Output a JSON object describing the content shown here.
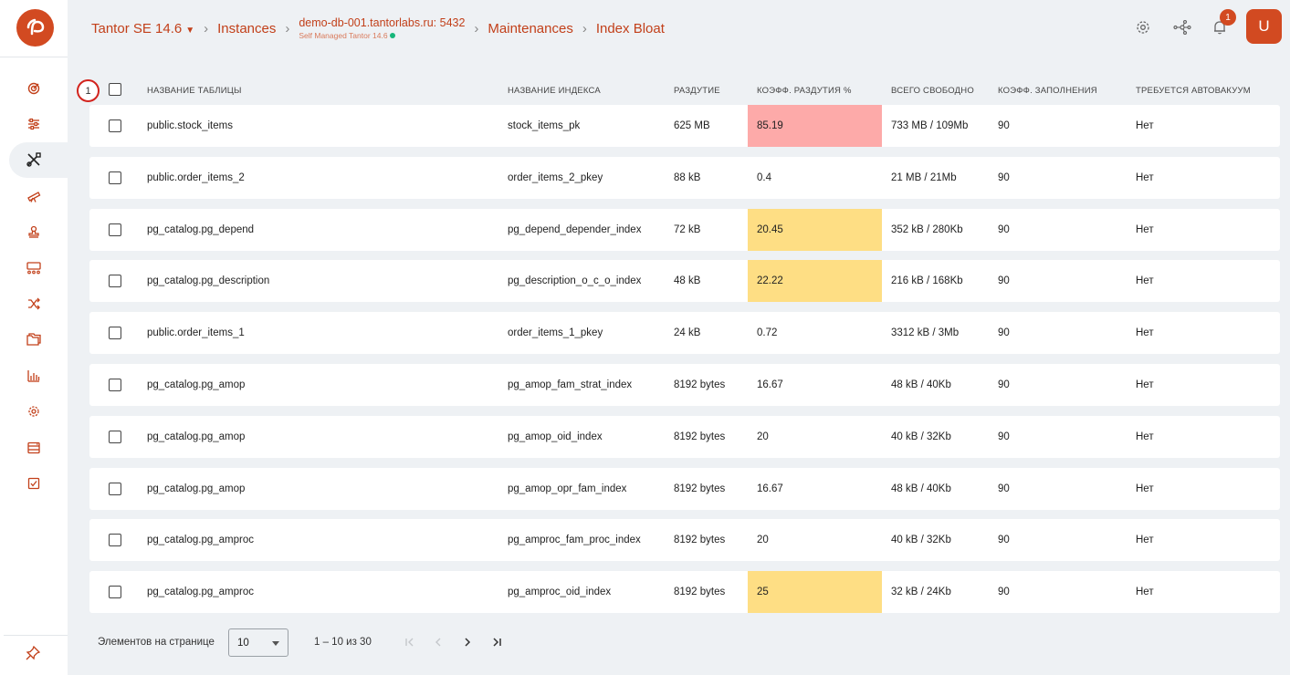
{
  "header": {
    "product": "Tantor SE 14.6",
    "instances": "Instances",
    "instance_host": "demo-db-001.tantorlabs.ru: 5432",
    "instance_sub": "Self Managed Tantor 14.6",
    "maintenances": "Maintenances",
    "current": "Index Bloat",
    "notifications_count": "1",
    "avatar_letter": "U"
  },
  "sidebar": {
    "items": [
      "dashboard-icon",
      "sliders-icon",
      "tools-icon",
      "telescope-icon",
      "stamp-icon",
      "cluster-icon",
      "shuffle-icon",
      "folders-icon",
      "bar-chart-icon",
      "settings-gear-icon",
      "database-icon",
      "checklist-icon"
    ],
    "active_index": 2
  },
  "annotation_marker": "1",
  "table": {
    "columns": [
      "НАЗВАНИЕ ТАБЛИЦЫ",
      "НАЗВАНИЕ ИНДЕКСА",
      "РАЗДУТИЕ",
      "КОЭФФ. РАЗДУТИЯ %",
      "ВСЕГО СВОБОДНО",
      "КОЭФФ. ЗАПОЛНЕНИЯ",
      "ТРЕБУЕТСЯ АВТОВАКУУМ"
    ],
    "rows": [
      {
        "table": "public.stock_items",
        "index": "stock_items_pk",
        "bloat": "625 MB",
        "coef": "85.19",
        "level": "red",
        "free": "733 MB / 109Mb",
        "fill": "90",
        "autovacuum": "Нет"
      },
      {
        "table": "public.order_items_2",
        "index": "order_items_2_pkey",
        "bloat": "88 kB",
        "coef": "0.4",
        "level": "none",
        "free": "21 MB / 21Mb",
        "fill": "90",
        "autovacuum": "Нет"
      },
      {
        "table": "pg_catalog.pg_depend",
        "index": "pg_depend_depender_index",
        "bloat": "72 kB",
        "coef": "20.45",
        "level": "yellow",
        "free": "352 kB / 280Kb",
        "fill": "90",
        "autovacuum": "Нет"
      },
      {
        "table": "pg_catalog.pg_description",
        "index": "pg_description_o_c_o_index",
        "bloat": "48 kB",
        "coef": "22.22",
        "level": "yellow",
        "free": "216 kB / 168Kb",
        "fill": "90",
        "autovacuum": "Нет"
      },
      {
        "table": "public.order_items_1",
        "index": "order_items_1_pkey",
        "bloat": "24 kB",
        "coef": "0.72",
        "level": "none",
        "free": "3312 kB / 3Mb",
        "fill": "90",
        "autovacuum": "Нет"
      },
      {
        "table": "pg_catalog.pg_amop",
        "index": "pg_amop_fam_strat_index",
        "bloat": "8192 bytes",
        "coef": "16.67",
        "level": "none",
        "free": "48 kB / 40Kb",
        "fill": "90",
        "autovacuum": "Нет"
      },
      {
        "table": "pg_catalog.pg_amop",
        "index": "pg_amop_oid_index",
        "bloat": "8192 bytes",
        "coef": "20",
        "level": "none",
        "free": "40 kB / 32Kb",
        "fill": "90",
        "autovacuum": "Нет"
      },
      {
        "table": "pg_catalog.pg_amop",
        "index": "pg_amop_opr_fam_index",
        "bloat": "8192 bytes",
        "coef": "16.67",
        "level": "none",
        "free": "48 kB / 40Kb",
        "fill": "90",
        "autovacuum": "Нет"
      },
      {
        "table": "pg_catalog.pg_amproc",
        "index": "pg_amproc_fam_proc_index",
        "bloat": "8192 bytes",
        "coef": "20",
        "level": "none",
        "free": "40 kB / 32Kb",
        "fill": "90",
        "autovacuum": "Нет"
      },
      {
        "table": "pg_catalog.pg_amproc",
        "index": "pg_amproc_oid_index",
        "bloat": "8192 bytes",
        "coef": "25",
        "level": "yellow",
        "free": "32 kB / 24Kb",
        "fill": "90",
        "autovacuum": "Нет"
      }
    ]
  },
  "pagination": {
    "items_per_page_label": "Элементов на странице",
    "page_size": "10",
    "range": "1 – 10 из 30"
  },
  "colors": {
    "accent": "#d24a21",
    "coef_high": "#fdaaa9",
    "coef_medium": "#fede84"
  }
}
